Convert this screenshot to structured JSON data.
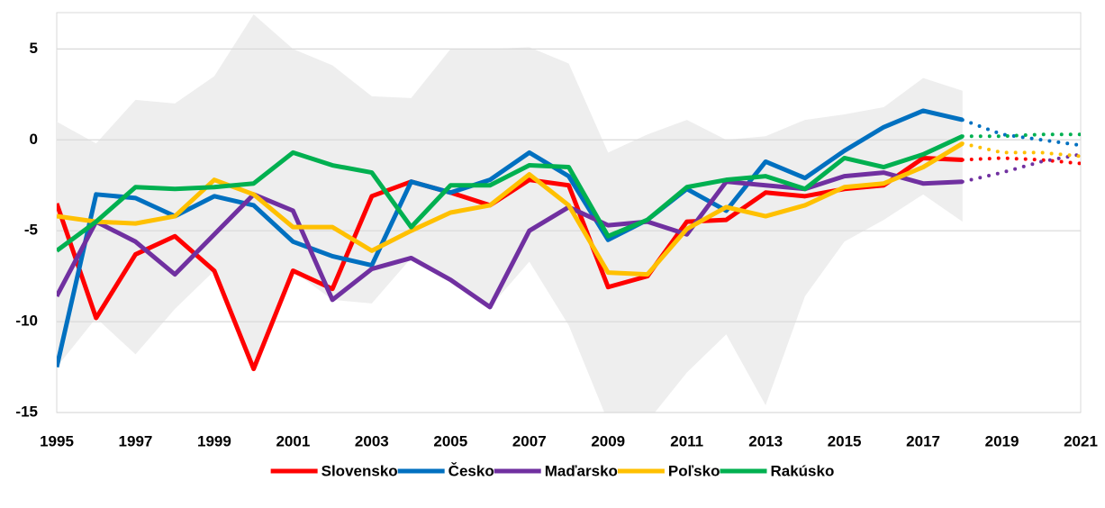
{
  "chart_data": {
    "type": "line",
    "x": [
      1995,
      1996,
      1997,
      1998,
      1999,
      2000,
      2001,
      2002,
      2003,
      2004,
      2005,
      2006,
      2007,
      2008,
      2009,
      2010,
      2011,
      2012,
      2013,
      2014,
      2015,
      2016,
      2017,
      2018,
      2019,
      2020,
      2021
    ],
    "xlim": [
      1995,
      2021
    ],
    "xticks": [
      1995,
      1997,
      1999,
      2001,
      2003,
      2005,
      2007,
      2009,
      2011,
      2013,
      2015,
      2017,
      2019,
      2021
    ],
    "ylim": [
      -15,
      7
    ],
    "yticks": [
      -15,
      -10,
      -5,
      0,
      5
    ],
    "grid": true,
    "legend": "bottom",
    "band": {
      "color": "#eeeeee",
      "upper": [
        1.0,
        -0.2,
        2.2,
        2.0,
        3.5,
        6.9,
        5.0,
        4.1,
        2.4,
        2.3,
        5.0,
        5.0,
        5.1,
        4.2,
        -0.7,
        0.3,
        1.1,
        0.0,
        0.2,
        1.1,
        1.4,
        1.8,
        3.4,
        2.7,
        null,
        null,
        null
      ],
      "lower": [
        -12.5,
        -9.8,
        -11.8,
        -9.3,
        -7.2,
        -12.6,
        -7.2,
        -8.8,
        -9.0,
        -6.5,
        -7.7,
        -9.2,
        -6.7,
        -10.2,
        -15.5,
        -15.5,
        -12.8,
        -10.7,
        -14.6,
        -8.6,
        -5.6,
        -4.4,
        -3.0,
        -4.5,
        null,
        null,
        null
      ]
    },
    "series": [
      {
        "name": "Slovensko",
        "color": "#ff0000",
        "values": [
          -3.5,
          -9.8,
          -6.3,
          -5.3,
          -7.2,
          -12.6,
          -7.2,
          -8.2,
          -3.1,
          -2.3,
          -2.9,
          -3.6,
          -2.2,
          -2.5,
          -8.1,
          -7.5,
          -4.5,
          -4.4,
          -2.9,
          -3.1,
          -2.7,
          -2.5,
          -1.0,
          -1.1,
          null,
          null,
          null
        ],
        "forecast": [
          null,
          null,
          null,
          null,
          null,
          null,
          null,
          null,
          null,
          null,
          null,
          null,
          null,
          null,
          null,
          null,
          null,
          null,
          null,
          null,
          null,
          null,
          null,
          -1.1,
          -1.0,
          -1.1,
          -1.3
        ]
      },
      {
        "name": "Česko",
        "color": "#0070c0",
        "values": [
          -12.5,
          -3.0,
          -3.2,
          -4.2,
          -3.1,
          -3.6,
          -5.6,
          -6.4,
          -6.9,
          -2.3,
          -2.9,
          -2.2,
          -0.7,
          -2.0,
          -5.5,
          -4.4,
          -2.7,
          -3.9,
          -1.2,
          -2.1,
          -0.6,
          0.7,
          1.6,
          1.1,
          null,
          null,
          null
        ],
        "forecast": [
          null,
          null,
          null,
          null,
          null,
          null,
          null,
          null,
          null,
          null,
          null,
          null,
          null,
          null,
          null,
          null,
          null,
          null,
          null,
          null,
          null,
          null,
          null,
          1.1,
          0.3,
          0.0,
          -0.3
        ]
      },
      {
        "name": "Maďarsko",
        "color": "#7030a0",
        "values": [
          -8.6,
          -4.5,
          -5.6,
          -7.4,
          -5.2,
          -3.0,
          -3.9,
          -8.8,
          -7.1,
          -6.5,
          -7.7,
          -9.2,
          -5.0,
          -3.7,
          -4.7,
          -4.5,
          -5.2,
          -2.3,
          -2.5,
          -2.7,
          -2.0,
          -1.8,
          -2.4,
          -2.3,
          null,
          null,
          null
        ],
        "forecast": [
          null,
          null,
          null,
          null,
          null,
          null,
          null,
          null,
          null,
          null,
          null,
          null,
          null,
          null,
          null,
          null,
          null,
          null,
          null,
          null,
          null,
          null,
          null,
          -2.3,
          -1.8,
          -1.2,
          -0.8
        ]
      },
      {
        "name": "Poľsko",
        "color": "#ffc000",
        "values": [
          -4.2,
          -4.5,
          -4.6,
          -4.2,
          -2.2,
          -3.0,
          -4.8,
          -4.8,
          -6.1,
          -5.0,
          -4.0,
          -3.6,
          -1.9,
          -3.6,
          -7.3,
          -7.4,
          -4.9,
          -3.7,
          -4.2,
          -3.6,
          -2.6,
          -2.4,
          -1.5,
          -0.2,
          null,
          null,
          null
        ],
        "forecast": [
          null,
          null,
          null,
          null,
          null,
          null,
          null,
          null,
          null,
          null,
          null,
          null,
          null,
          null,
          null,
          null,
          null,
          null,
          null,
          null,
          null,
          null,
          null,
          -0.2,
          -0.7,
          -0.7,
          -0.9
        ]
      },
      {
        "name": "Rakúsko",
        "color": "#00b050",
        "values": [
          -6.1,
          -4.5,
          -2.6,
          -2.7,
          -2.6,
          -2.4,
          -0.7,
          -1.4,
          -1.8,
          -4.8,
          -2.5,
          -2.5,
          -1.4,
          -1.5,
          -5.3,
          -4.4,
          -2.6,
          -2.2,
          -2.0,
          -2.7,
          -1.0,
          -1.5,
          -0.8,
          0.2,
          null,
          null,
          null
        ],
        "forecast": [
          null,
          null,
          null,
          null,
          null,
          null,
          null,
          null,
          null,
          null,
          null,
          null,
          null,
          null,
          null,
          null,
          null,
          null,
          null,
          null,
          null,
          null,
          null,
          0.2,
          0.2,
          0.3,
          0.3
        ]
      }
    ]
  }
}
